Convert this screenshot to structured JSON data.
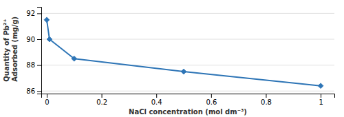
{
  "chart_data": {
    "type": "line",
    "x": [
      0.0,
      0.01,
      0.1,
      0.5,
      1.0
    ],
    "values": [
      91.5,
      90.0,
      88.5,
      87.5,
      86.4
    ],
    "color": "#2e75b6",
    "marker": "diamond",
    "xlabel": "NaCl concentration (mol dm⁻³)",
    "ylabel": "Quantity of Pb²⁺\n Adsorbed (mg/g)",
    "xlim": [
      -0.02,
      1.05
    ],
    "ylim": [
      85.8,
      92.5
    ],
    "xticks": [
      0,
      0.2,
      0.4,
      0.6,
      0.8,
      1.0
    ],
    "yticks": [
      86,
      88,
      90,
      92
    ],
    "grid": true
  }
}
